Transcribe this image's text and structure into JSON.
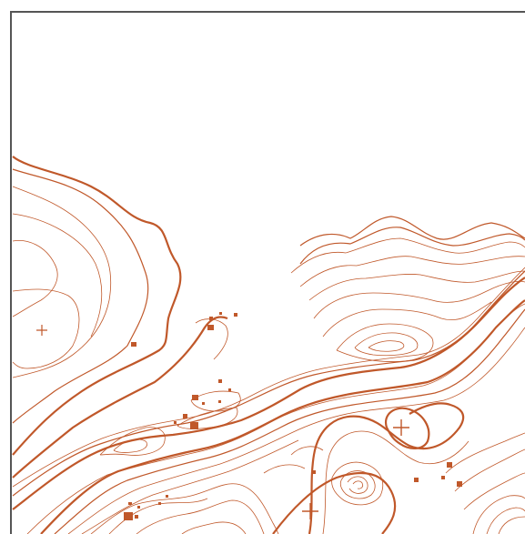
{
  "map": {
    "kind": "topographic-contour-map",
    "contour_color": "#c0582a",
    "frame_color": "#555555",
    "background": "#ffffff",
    "features": [
      "contour-lines",
      "index-contours",
      "summit-markers",
      "point-symbols"
    ],
    "summit_markers": 5,
    "point_symbols": 22
  }
}
